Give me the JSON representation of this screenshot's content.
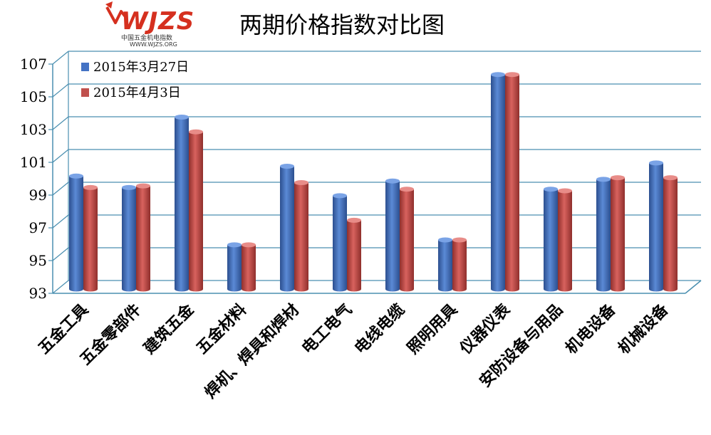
{
  "logo": {
    "brand": "WJZS",
    "subtitle": "中国五金机电指数",
    "url": "WWW.WJZS.ORG"
  },
  "chart_data": {
    "type": "bar",
    "title": "两期价格指数对比图",
    "xlabel": "",
    "ylabel": "",
    "ylim": [
      93,
      107
    ],
    "yticks": [
      93,
      95,
      97,
      99,
      101,
      103,
      105,
      107
    ],
    "grid": true,
    "legend_position": "top-left",
    "categories": [
      "五金工具",
      "五金零部件",
      "建筑五金",
      "五金材料",
      "焊机、焊具和焊材",
      "电工电气",
      "电线电缆",
      "照明用具",
      "仪器仪表",
      "安防设备与用品",
      "机电设备",
      "机械设备"
    ],
    "series": [
      {
        "name": "2015年3月27日",
        "color": "#4472c4",
        "values": [
          99.9,
          99.2,
          103.5,
          95.7,
          100.5,
          98.7,
          99.6,
          96.0,
          106.1,
          99.1,
          99.7,
          100.7
        ]
      },
      {
        "name": "2015年4月3日",
        "color": "#c0504d",
        "values": [
          99.2,
          99.3,
          102.6,
          95.7,
          99.5,
          97.2,
          99.1,
          96.0,
          106.1,
          99.0,
          99.8,
          99.8
        ]
      }
    ]
  }
}
